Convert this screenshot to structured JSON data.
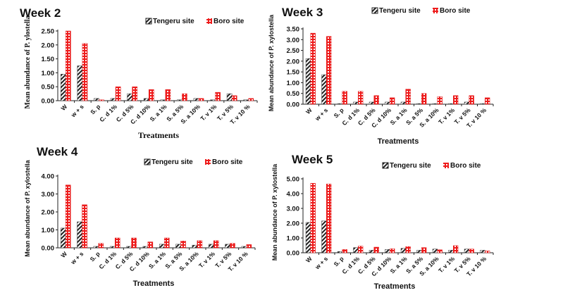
{
  "chart_data": [
    {
      "type": "bar",
      "title": "Week 2",
      "xlabel": "Treatments",
      "ylabel": "Mean abundance of P. ylostella",
      "ylim": [
        0,
        2.5
      ],
      "yticks": [
        "0.00",
        "0.50",
        "1.00",
        "1.50",
        "2.00",
        "2.50"
      ],
      "categories": [
        "W",
        "w + s",
        "S. p",
        "C. d 1%",
        "C. d 5%",
        "C. d 10%",
        "S. a 1%",
        "S. a 5%",
        "S. a 10%",
        "T. v 1%",
        "T. v 5%",
        "T. v 10 %"
      ],
      "legend_position": "top-right",
      "series": [
        {
          "name": "Tengeru site",
          "values": [
            0.95,
            1.25,
            0.08,
            0.08,
            0.25,
            0.08,
            0.03,
            0.03,
            0.08,
            0.03,
            0.25,
            0.03
          ]
        },
        {
          "name": "Boro site",
          "values": [
            2.5,
            2.05,
            0.03,
            0.5,
            0.5,
            0.4,
            0.4,
            0.25,
            0.08,
            0.3,
            0.18,
            0.08
          ]
        }
      ]
    },
    {
      "type": "bar",
      "title": "Week 3",
      "xlabel": "Treatments",
      "ylabel": "Mean abundance of P. xylostella",
      "ylim": [
        0,
        3.5
      ],
      "yticks": [
        "0.00",
        "0.50",
        "1.00",
        "1.50",
        "2.00",
        "2.50",
        "3.00",
        "3.50"
      ],
      "categories": [
        "W",
        "w + s",
        "S. p",
        "C. d 1%",
        "C. d 5%",
        "C. d 10%",
        "S. a 1%",
        "S. a 5%",
        "S. a 10%",
        "T. v 1%",
        "T. v 5%",
        "T. v 10 %"
      ],
      "legend_position": "top",
      "series": [
        {
          "name": "Tengeru site",
          "values": [
            2.12,
            1.37,
            0.03,
            0.1,
            0.1,
            0.1,
            0.1,
            0.03,
            0.03,
            0.03,
            0.1,
            0.03
          ]
        },
        {
          "name": "Boro site",
          "values": [
            3.3,
            3.15,
            0.6,
            0.6,
            0.4,
            0.3,
            0.7,
            0.5,
            0.35,
            0.4,
            0.4,
            0.3
          ]
        }
      ]
    },
    {
      "type": "bar",
      "title": "Week 4",
      "xlabel": "Treatments",
      "ylabel": "Mean abundance of P. xylostella",
      "ylim": [
        0,
        4
      ],
      "yticks": [
        "0.00",
        "1.00",
        "2.00",
        "3.00",
        "4.00"
      ],
      "categories": [
        "W",
        "w + s",
        "S. p",
        "C. d 1%",
        "C. d 5%",
        "C. d 10%",
        "S. a 1%",
        "S. a 5%",
        "S. a 10%",
        "T. v 1%",
        "T. v 5%",
        "T. v 10 %"
      ],
      "legend_position": "top-right",
      "series": [
        {
          "name": "Tengeru site",
          "values": [
            1.1,
            1.45,
            0.08,
            0.08,
            0.08,
            0.08,
            0.2,
            0.2,
            0.15,
            0.2,
            0.2,
            0.08
          ]
        },
        {
          "name": "Boro site",
          "values": [
            3.5,
            2.4,
            0.25,
            0.55,
            0.55,
            0.33,
            0.55,
            0.38,
            0.4,
            0.4,
            0.25,
            0.18
          ]
        }
      ]
    },
    {
      "type": "bar",
      "title": "Week 5",
      "xlabel": "Treatments",
      "ylabel": "Mean abundance of P. xylostella",
      "ylim": [
        0,
        5
      ],
      "yticks": [
        "0.00",
        "1.00",
        "2.00",
        "3.00",
        "4.00",
        "5.00"
      ],
      "categories": [
        "W",
        "w + s",
        "S. p",
        "C. d 1%",
        "C. d 5%",
        "C. d 10%",
        "S. a 1%",
        "S. a 5%",
        "S. a 10%",
        "T. v 1%",
        "T. v 5%",
        "T. v 10 %"
      ],
      "legend_position": "top",
      "series": [
        {
          "name": "Tengeru site",
          "values": [
            2.05,
            2.15,
            0.08,
            0.35,
            0.17,
            0.22,
            0.3,
            0.17,
            0.25,
            0.17,
            0.25,
            0.17
          ]
        },
        {
          "name": "Boro site",
          "values": [
            4.7,
            4.65,
            0.22,
            0.45,
            0.38,
            0.27,
            0.42,
            0.35,
            0.2,
            0.48,
            0.25,
            0.12
          ]
        }
      ]
    }
  ],
  "colors": {
    "tengeru": "#222222",
    "boro": "#ee1c1c"
  }
}
